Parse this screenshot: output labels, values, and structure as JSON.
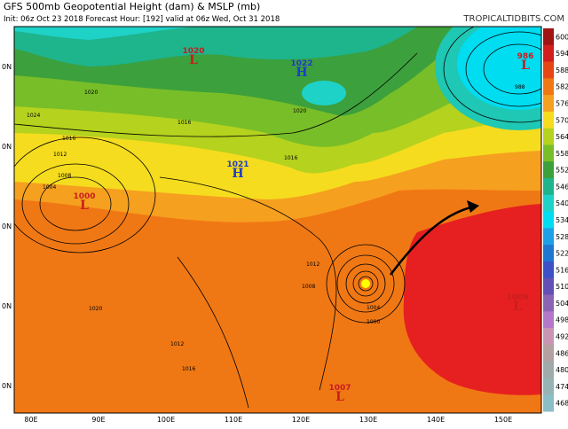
{
  "header": {
    "title": "GFS 500mb Geopotential Height (dam) & MSLP (mb)",
    "subtitle": "Init: 06z Oct 23 2018   Forecast Hour: [192]   valid at 06z Wed, Oct 31 2018",
    "site": "TROPICALTIDBITS.COM"
  },
  "colorbar": {
    "labels": [
      "600",
      "594",
      "588",
      "582",
      "576",
      "570",
      "564",
      "558",
      "552",
      "546",
      "540",
      "534",
      "528",
      "522",
      "516",
      "510",
      "504",
      "498",
      "492",
      "486",
      "480",
      "474",
      "468"
    ]
  },
  "axes": {
    "lat_labels": [
      "0N",
      "0N",
      "0N",
      "0N",
      "0N"
    ],
    "lon_labels": [
      "80E",
      "90E",
      "100E",
      "110E",
      "120E",
      "130E",
      "140E",
      "150E"
    ]
  },
  "pressure_centers": [
    {
      "letter": "L",
      "value": "1000"
    },
    {
      "letter": "H",
      "value": "1022"
    },
    {
      "letter": "H",
      "value": "1021"
    },
    {
      "letter": "L",
      "value": "986"
    },
    {
      "letter": "L",
      "value": "1009"
    },
    {
      "letter": "L",
      "value": "1007"
    },
    {
      "letter": "L",
      "value": "1020"
    }
  ],
  "isobar_labels": [
    "1024",
    "1020",
    "1016",
    "1016",
    "1012",
    "1008",
    "1004",
    "1020",
    "1016",
    "1012",
    "1008",
    "1004",
    "1000",
    "1012",
    "1016",
    "1020",
    "988"
  ]
}
